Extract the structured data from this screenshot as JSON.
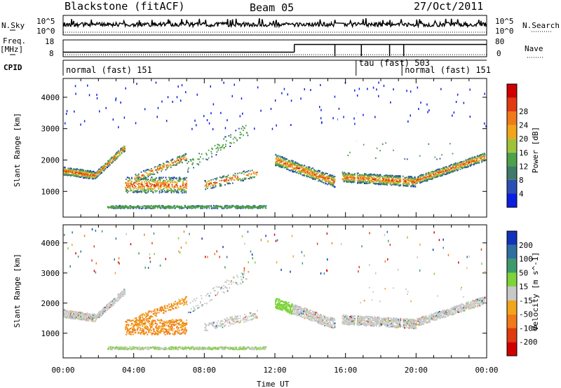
{
  "header": {
    "station": "Blackstone (fitACF)",
    "beam": "Beam 05",
    "date": "27/Oct/2011"
  },
  "left_labels": {
    "nsky": "N.Sky",
    "freq_line1": "Freq.",
    "freq_line2": "[MHz]",
    "cpid": "CPID"
  },
  "right_labels": {
    "nsearch": "N.Search",
    "nave": "Nave"
  },
  "strip_ticks": {
    "noise_top_left": "10^5",
    "noise_bottom_left": "10^0",
    "noise_top_right": "10^5",
    "noise_bottom_right": "10^0",
    "freq_top": "18",
    "freq_bottom": "8",
    "nave_top": "80",
    "nave_bottom": "0"
  },
  "cpid_segments": [
    {
      "label": "normal (fast) 151",
      "start_h": 0.0,
      "end_h": 16.6
    },
    {
      "label": "tau (fast) 503",
      "start_h": 16.6,
      "end_h": 19.2
    },
    {
      "label": "normal (fast) 151",
      "start_h": 19.2,
      "end_h": 24.0
    }
  ],
  "freq_steps": [
    {
      "start_h": 0.0,
      "end_h": 13.1,
      "value": 10.5
    },
    {
      "start_h": 13.1,
      "end_h": 24.0,
      "value": 15.5
    }
  ],
  "power_colorbar": {
    "label": "Power [dB]",
    "ticks": [
      "4",
      "8",
      "12",
      "16",
      "20",
      "24",
      "28"
    ],
    "colors": [
      "#0a1fe0",
      "#2d4fb5",
      "#3f7a6a",
      "#4fa04a",
      "#9fc23a",
      "#f0a51a",
      "#f07a1a",
      "#e03a10",
      "#d00000"
    ]
  },
  "velocity_colorbar": {
    "label": "Velocity [m s^-1]",
    "ticks": [
      "200",
      "100",
      "50",
      "15",
      "-15",
      "-50",
      "-100",
      "-200"
    ],
    "colors": [
      "#1232b8",
      "#2f6fa0",
      "#3f9a6a",
      "#7ed23a",
      "#c8c8c8",
      "#f0a51a",
      "#f07a1a",
      "#e03a10",
      "#d00000"
    ]
  },
  "panel_ylabel": "Slant Range [km]",
  "xlabel": "Time UT",
  "chart_data": {
    "type": "heatmap",
    "x_ticks": [
      "00:00",
      "04:00",
      "08:00",
      "12:00",
      "16:00",
      "20:00",
      "00:00"
    ],
    "xlim_hours": [
      0,
      24
    ],
    "y_ticks": [
      "1000",
      "2000",
      "3000",
      "4000"
    ],
    "ylim_km": [
      180,
      4600
    ],
    "panels": [
      "Power [dB]",
      "Velocity [m s^-1]"
    ]
  }
}
